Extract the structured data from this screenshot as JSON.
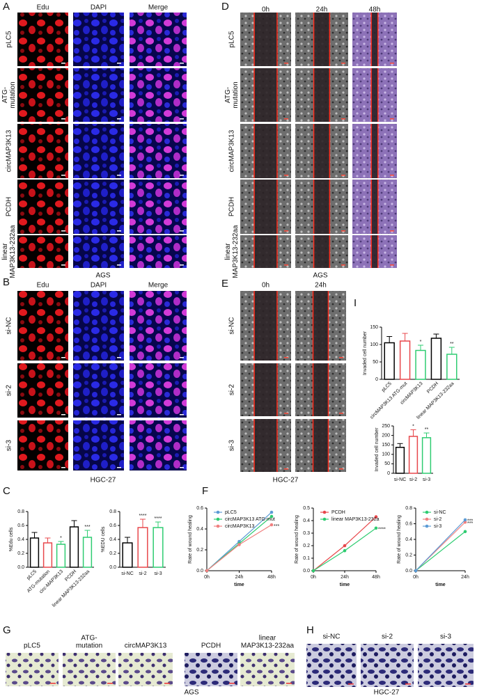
{
  "figure": {
    "A": {
      "letter": "A",
      "columns": [
        "Edu",
        "DAPI",
        "Merge"
      ],
      "rows": [
        [
          "pLC5"
        ],
        [
          "ATG-",
          "mutation"
        ],
        [
          "circMAP3K13"
        ],
        [
          "PCDH"
        ],
        [
          "linear",
          "MAP3K13-232aa"
        ]
      ],
      "caption": "AGS"
    },
    "B": {
      "letter": "B",
      "columns": [
        "Edu",
        "DAPI",
        "Merge"
      ],
      "rows": [
        [
          "si-NC"
        ],
        [
          "si-2"
        ],
        [
          "si-3"
        ]
      ],
      "caption": "HGC-27"
    },
    "D": {
      "letter": "D",
      "columns": [
        "0h",
        "24h",
        "48h"
      ],
      "rows": [
        [
          "pLC5"
        ],
        [
          "ATG-",
          "mutation"
        ],
        [
          "circMAP3K13"
        ],
        [
          "PCDH"
        ],
        [
          "linear",
          "MAP3K13-232aa"
        ]
      ],
      "caption": "AGS"
    },
    "E": {
      "letter": "E",
      "columns": [
        "0h",
        "24h"
      ],
      "rows": [
        [
          "si-NC"
        ],
        [
          "si-2"
        ],
        [
          "si-3"
        ]
      ],
      "caption": "HGC-27"
    },
    "G": {
      "letter": "G",
      "columns": [
        [
          "pLC5"
        ],
        [
          "ATG-",
          "mutation"
        ],
        [
          "circMAP3K13"
        ],
        [
          "PCDH"
        ],
        [
          "linear",
          "MAP3K13-232aa"
        ]
      ],
      "caption": "AGS"
    },
    "H": {
      "letter": "H",
      "columns": [
        [
          "si-NC"
        ],
        [
          "si-2"
        ],
        [
          "si-3"
        ]
      ],
      "caption": "HGC-27"
    },
    "C": {
      "letter": "C"
    },
    "F": {
      "letter": "F"
    },
    "I": {
      "letter": "I"
    }
  },
  "chart_data": [
    {
      "type": "bar",
      "ylabel": "%Edu cells",
      "categories": [
        "pLC5",
        "ATG-mutation",
        "circ-MAP3K13",
        "PCDH",
        "linear MAP3K13-232aa"
      ],
      "values": [
        0.42,
        0.35,
        0.33,
        0.58,
        0.43
      ],
      "errors": [
        0.08,
        0.07,
        0.04,
        0.09,
        0.1
      ],
      "colors": [
        "#000000",
        "#e8474b",
        "#2ecc71",
        "#000000",
        "#2ecc71"
      ],
      "significance": [
        null,
        null,
        "*",
        null,
        "***"
      ],
      "ylim": [
        0,
        0.8
      ],
      "yticks": [
        {
          "value": 0,
          "label": "0.0"
        },
        0.2,
        0.4,
        0.6,
        0.8
      ]
    },
    {
      "type": "bar",
      "ylabel": "%EDU cells",
      "categories": [
        "si-NC",
        "si-2",
        "si-3"
      ],
      "values": [
        0.35,
        0.57,
        0.57
      ],
      "errors": [
        0.08,
        0.12,
        0.08
      ],
      "colors": [
        "#000000",
        "#e8474b",
        "#2ecc71"
      ],
      "significance": [
        null,
        "****",
        "****"
      ],
      "ylim": [
        0,
        0.8
      ],
      "yticks": [
        {
          "value": 0,
          "label": "0.0"
        },
        0.2,
        0.4,
        0.6,
        0.8
      ]
    },
    {
      "type": "line",
      "ylabel": "Rate of wound healing",
      "xlabel": "time",
      "categories": [
        "0h",
        "24h",
        "48h"
      ],
      "series": [
        {
          "name": "pLC5",
          "color": "#5b9bd5",
          "values": [
            0,
            0.28,
            0.56
          ]
        },
        {
          "name": "circMAP3K13 ATG-mut",
          "color": "#2ecc71",
          "values": [
            0,
            0.26,
            0.52
          ]
        },
        {
          "name": "circMAP3K13",
          "color": "#f08080",
          "values": [
            0,
            0.25,
            0.44
          ]
        }
      ],
      "significance": [
        "***"
      ],
      "ylim": [
        0,
        0.6
      ],
      "yticks": [
        {
          "value": 0,
          "label": "0.0"
        },
        0.2,
        0.4,
        0.6
      ]
    },
    {
      "type": "line",
      "ylabel": "Rate of wound healing",
      "xlabel": "time",
      "categories": [
        "0h",
        "24h",
        "48h"
      ],
      "series": [
        {
          "name": "PCDH",
          "color": "#e8474b",
          "values": [
            0,
            0.2,
            0.43
          ]
        },
        {
          "name": "linear MAP3K13-232a",
          "color": "#2ecc71",
          "values": [
            0,
            0.16,
            0.34
          ]
        }
      ],
      "significance": [
        "****"
      ],
      "ylim": [
        0,
        0.5
      ],
      "yticks": [
        {
          "value": 0,
          "label": "0.0"
        },
        0.1,
        0.2,
        0.3,
        0.4,
        0.5
      ]
    },
    {
      "type": "line",
      "ylabel": "Rate of wound healing",
      "xlabel": "time",
      "categories": [
        "0h",
        "24h"
      ],
      "series": [
        {
          "name": "si-NC",
          "color": "#2ecc71",
          "values": [
            0,
            0.5
          ]
        },
        {
          "name": "si-2",
          "color": "#f08080",
          "values": [
            0,
            0.62
          ]
        },
        {
          "name": "si-3",
          "color": "#5b9bd5",
          "values": [
            0,
            0.65
          ]
        }
      ],
      "significance": [
        "***",
        "***"
      ],
      "ylim": [
        0,
        0.8
      ],
      "yticks": [
        {
          "value": 0,
          "label": "0.0"
        },
        0.2,
        0.4,
        0.6,
        0.8
      ]
    },
    {
      "type": "bar",
      "ylabel": "Invaded cell number",
      "categories": [
        "pLC5",
        "circMAP3K13 ATG-mut",
        "circMAP3K13",
        "PCDH",
        "linear MAP3K13-232aa"
      ],
      "values": [
        105,
        110,
        83,
        118,
        72
      ],
      "errors": [
        18,
        22,
        15,
        12,
        20
      ],
      "colors": [
        "#000000",
        "#e8474b",
        "#2ecc71",
        "#000000",
        "#2ecc71"
      ],
      "significance": [
        null,
        null,
        "*",
        null,
        "**"
      ],
      "ylim": [
        0,
        150
      ],
      "yticks": [
        0,
        50,
        100,
        150
      ]
    },
    {
      "type": "bar",
      "ylabel": "Invaded cell number",
      "categories": [
        "si-NC",
        "si-2",
        "si-3"
      ],
      "values": [
        137,
        195,
        188
      ],
      "errors": [
        20,
        35,
        25
      ],
      "colors": [
        "#000000",
        "#e8474b",
        "#2ecc71"
      ],
      "significance": [
        null,
        "*",
        "**"
      ],
      "ylim": [
        0,
        250
      ],
      "yticks": [
        0,
        50,
        100,
        150,
        200,
        250
      ]
    }
  ]
}
